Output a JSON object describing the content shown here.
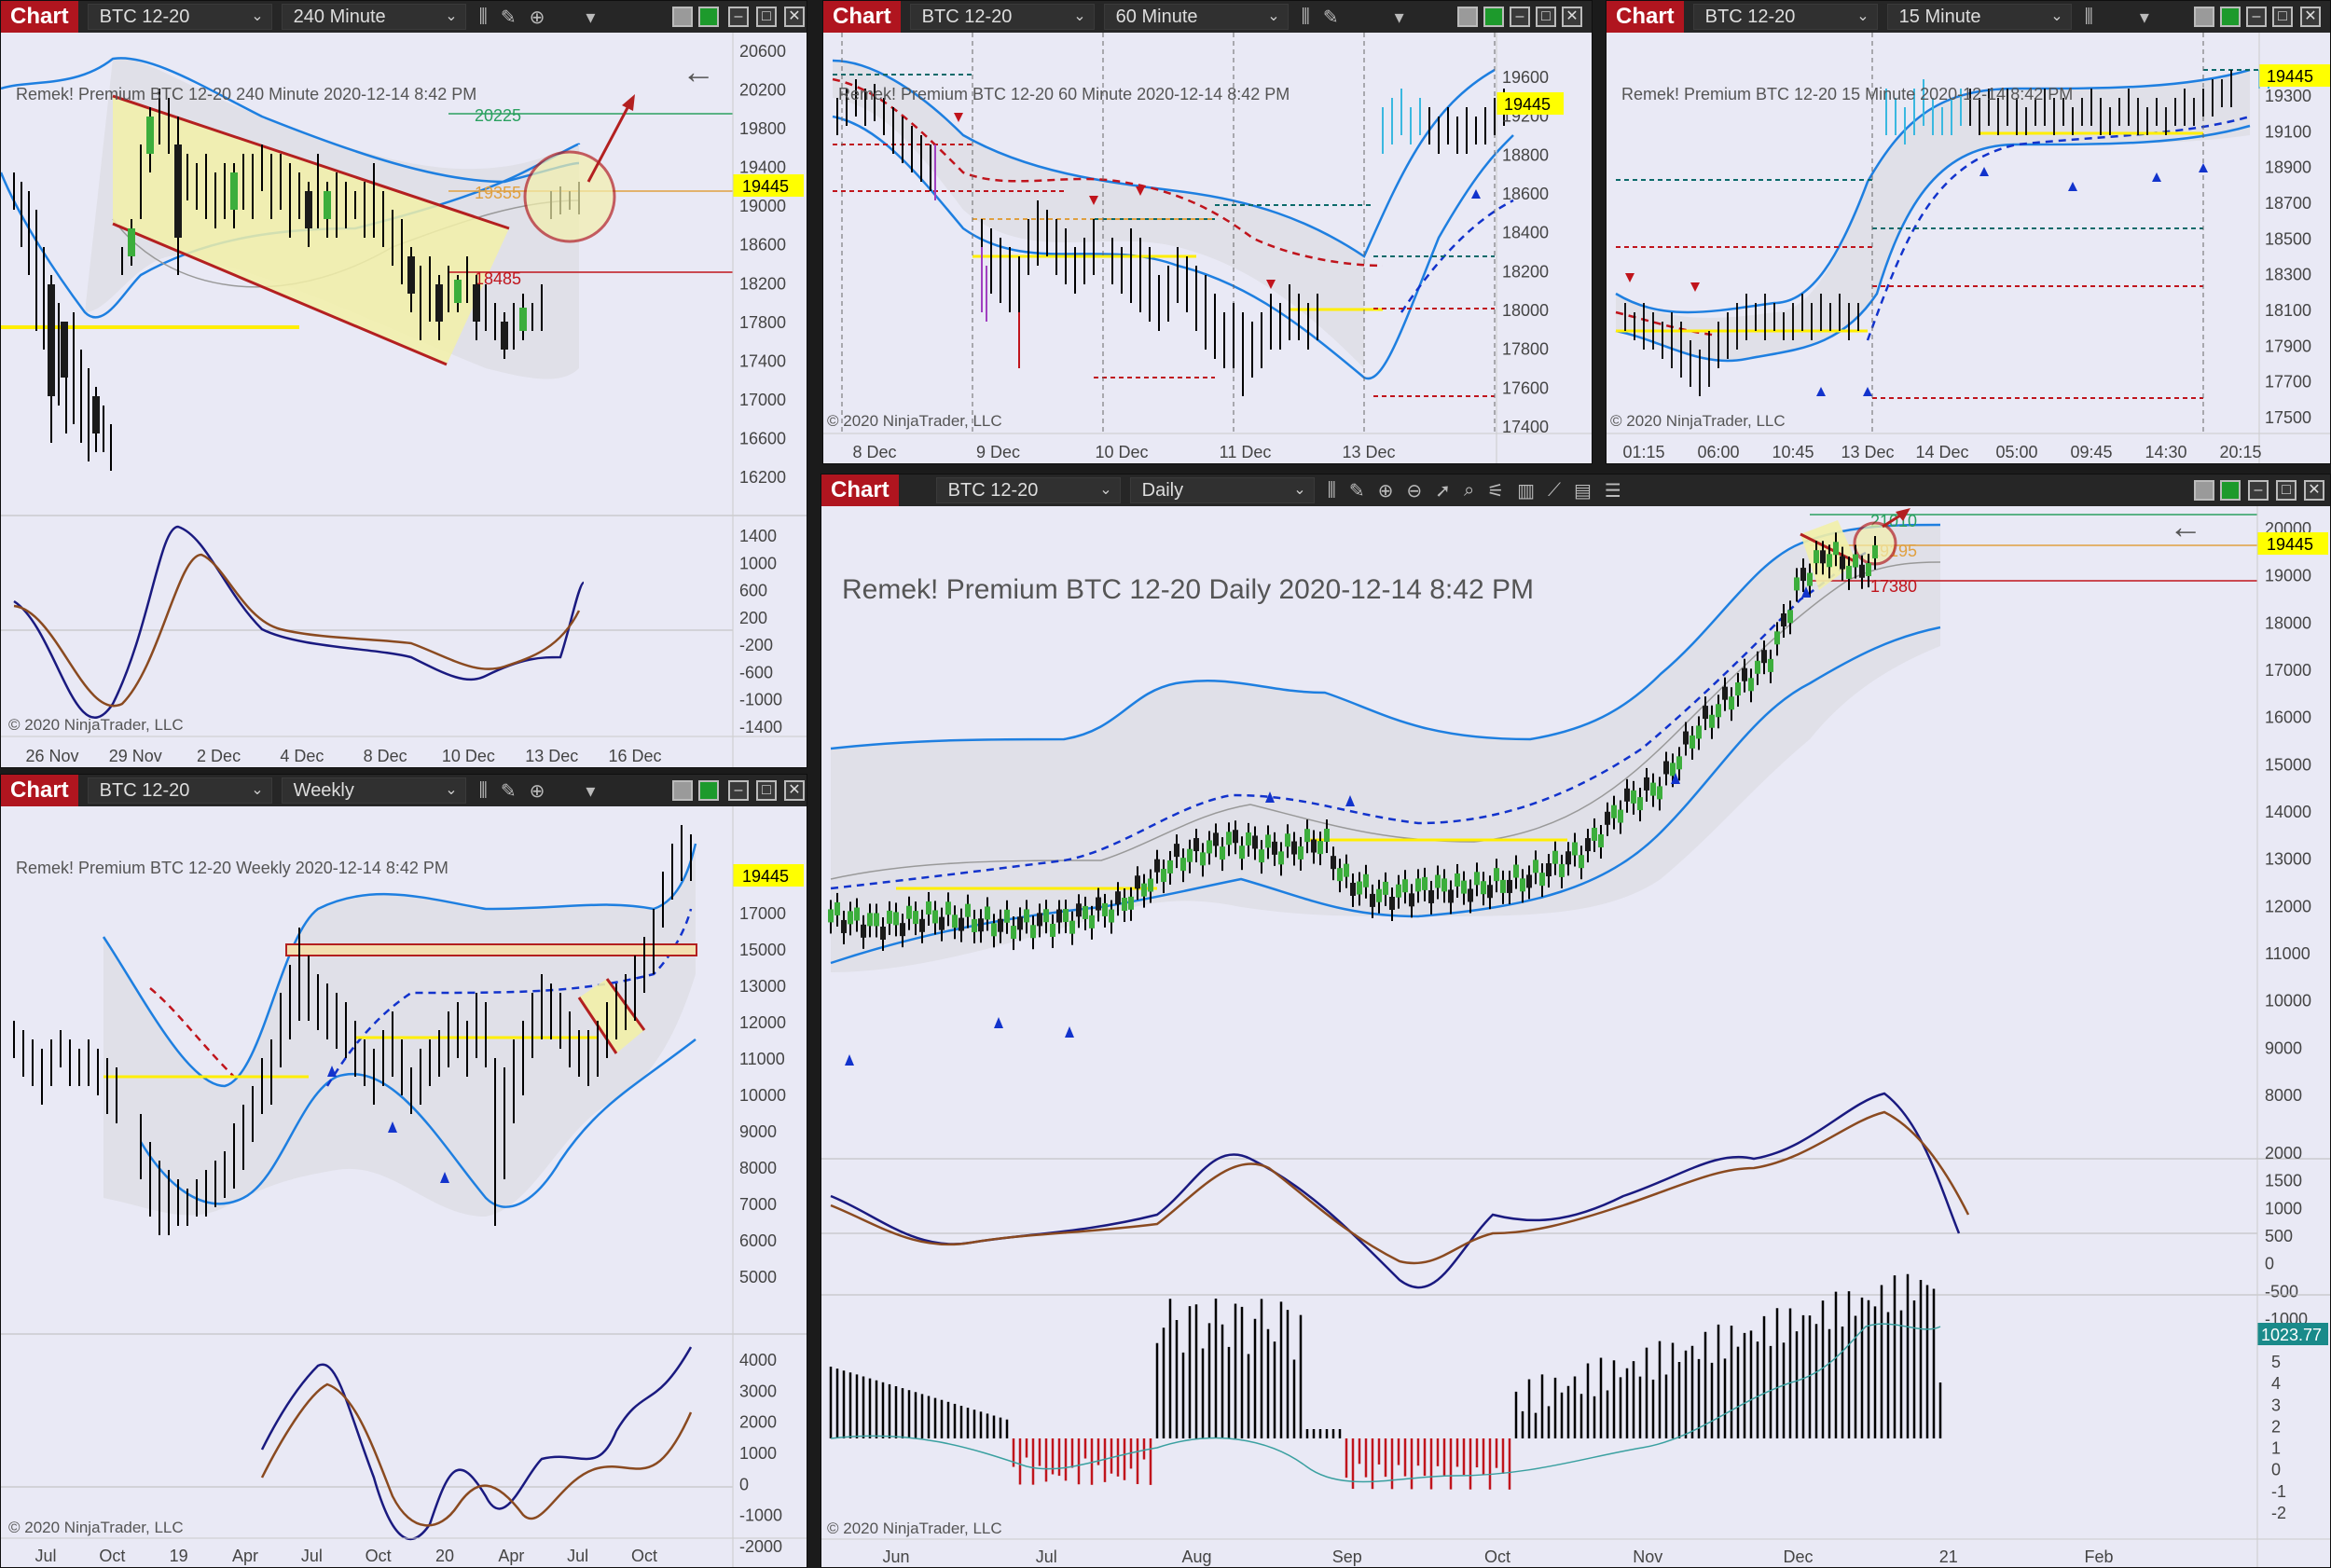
{
  "app_tag": "Chart",
  "instrument": "BTC 12-20",
  "copyright": "© 2020 NinjaTrader, LLC",
  "windows": {
    "w240": {
      "interval": "240 Minute",
      "header": "Remek!  Premium  BTC 12-20  240 Minute  2020-12-14 8:42 PM",
      "last_price": "19445",
      "level_labels": [
        "20225",
        "19355",
        "18485"
      ],
      "price_axis": [
        "20600",
        "20200",
        "19800",
        "19400",
        "19000",
        "18600",
        "18200",
        "17800",
        "17400",
        "17000",
        "16600",
        "16200"
      ],
      "osc_axis": [
        "1400",
        "1000",
        "600",
        "200",
        "-200",
        "-600",
        "-1000",
        "-1400"
      ],
      "time_axis": [
        "26 Nov",
        "29 Nov",
        "2 Dec",
        "4 Dec",
        "8 Dec",
        "10 Dec",
        "13 Dec",
        "16 Dec"
      ]
    },
    "w60": {
      "interval": "60 Minute",
      "header": "Remek!  Premium  BTC 12-20  60 Minute  2020-12-14 8:42 PM",
      "last_price": "19445",
      "price_axis": [
        "19600",
        "19200",
        "18800",
        "18600",
        "18400",
        "18200",
        "18000",
        "17800",
        "17600",
        "17400"
      ],
      "time_axis": [
        "8 Dec",
        "9 Dec",
        "10 Dec",
        "11 Dec",
        "13 Dec"
      ]
    },
    "w15": {
      "interval": "15 Minute",
      "header": "Remek!  Premium  BTC 12-20  15 Minute  2020-12-14 8:42 PM",
      "last_price": "19445",
      "price_axis": [
        "19300",
        "19100",
        "18900",
        "18700",
        "18500",
        "18300",
        "18100",
        "17900",
        "17700",
        "17500"
      ],
      "time_axis": [
        "01:15",
        "06:00",
        "10:45",
        "13 Dec",
        "14 Dec",
        "05:00",
        "09:45",
        "14:30",
        "20:15"
      ]
    },
    "weekly": {
      "interval": "Weekly",
      "header": "Remek!  Premium  BTC 12-20  Weekly  2020-12-14 8:42 PM",
      "last_price": "19445",
      "price_axis": [
        "17000",
        "15000",
        "13000",
        "12000",
        "11000",
        "10000",
        "9000",
        "8000",
        "7000",
        "6000",
        "5000"
      ],
      "osc_axis": [
        "4000",
        "3000",
        "2000",
        "1000",
        "0",
        "-1000",
        "-2000"
      ],
      "time_axis": [
        "Jul",
        "Oct",
        "19",
        "Apr",
        "Jul",
        "Oct",
        "20",
        "Apr",
        "Jul",
        "Oct"
      ]
    },
    "daily": {
      "interval": "Daily",
      "header": "Remek!  Premium  BTC 12-20  Daily  2020-12-14 8:42 PM",
      "last_price": "19445",
      "level_labels": [
        "21010",
        "19195",
        "17380"
      ],
      "price_axis": [
        "20000",
        "19000",
        "18000",
        "17000",
        "16000",
        "15000",
        "14000",
        "13000",
        "12000",
        "11000",
        "10000",
        "9000",
        "8000"
      ],
      "osc_axis": [
        "2000",
        "1500",
        "1000",
        "500",
        "0",
        "-500",
        "-1000"
      ],
      "vol_axis": [
        "5",
        "4",
        "3",
        "2",
        "1",
        "0",
        "-1",
        "-2"
      ],
      "vol_value": "1023.77",
      "time_axis": [
        "Jun",
        "Jul",
        "Aug",
        "Sep",
        "Oct",
        "Nov",
        "Dec",
        "21",
        "Feb"
      ]
    }
  },
  "colors": {
    "bg": "#e9e9f5",
    "band": "#1e7fe0",
    "price_tag": "#ffff00",
    "up_arrow": "#1233cc",
    "down_arrow": "#c0141c",
    "osc_fast": "#1a1a80",
    "osc_slow": "#8a4a20"
  }
}
